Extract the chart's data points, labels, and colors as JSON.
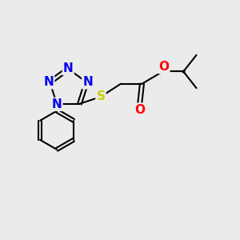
{
  "bg_color": "#ebebeb",
  "atom_colors": {
    "N": "#0000ee",
    "S": "#cccc00",
    "O": "#ff0000",
    "C": "#000000"
  },
  "bond_color": "#000000",
  "bond_lw": 1.5,
  "font_size": 11,
  "xlim": [
    0,
    10
  ],
  "ylim": [
    0,
    10
  ]
}
